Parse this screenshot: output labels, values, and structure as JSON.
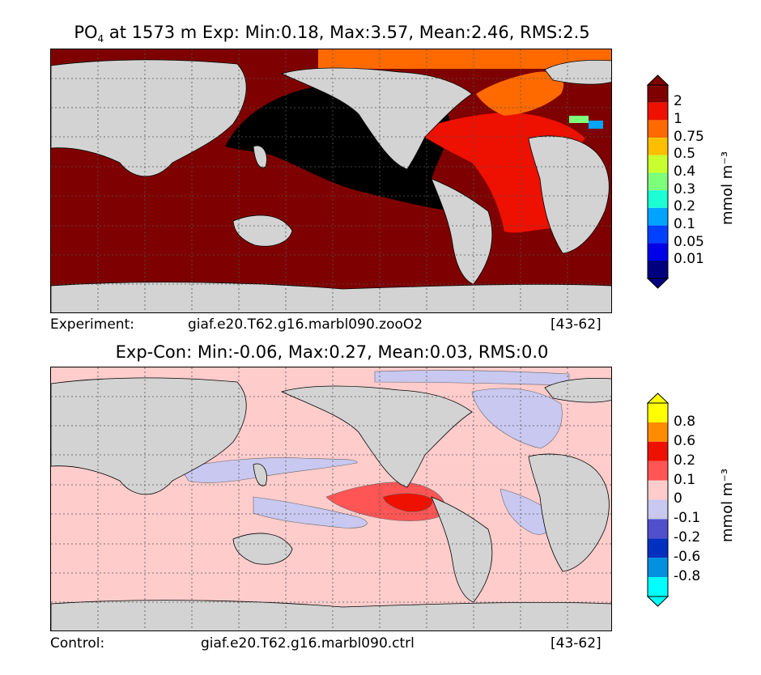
{
  "top": {
    "title_prefix": "PO",
    "title_sub": "4",
    "title_rest": " at 1573 m Exp: Min:0.18, Max:3.57, Mean:2.46, RMS:2.5",
    "caption_left": "Experiment:",
    "caption_center": "giaf.e20.T62.g16.marbl090.zooO2",
    "caption_right": "[43-62]",
    "colorbar": {
      "ticks": [
        "2",
        "1",
        "0.75",
        "0.5",
        "0.4",
        "0.3",
        "0.2",
        "0.1",
        "0.05",
        "0.01"
      ],
      "colors_top_to_bottom": [
        "#7f0000",
        "#ee1000",
        "#ff6a00",
        "#ffbf00",
        "#c9ff2e",
        "#7dff7a",
        "#1cffd4",
        "#00a4ff",
        "#0040ff",
        "#0000e8",
        "#00007f"
      ],
      "unit": "mmol m⁻³"
    },
    "map_colors": {
      "pacific": "#000000",
      "indian_southern": "#7f0000",
      "atlantic": "#ee1000",
      "arctic": "#ff6a00",
      "land": "#d3d3d3"
    }
  },
  "bottom": {
    "title": "Exp-Con: Min:-0.06, Max:0.27, Mean:0.03, RMS:0.0",
    "caption_left": "Control:",
    "caption_center": "giaf.e20.T62.g16.marbl090.ctrl",
    "caption_right": "[43-62]",
    "colorbar": {
      "ticks": [
        "0.8",
        "0.6",
        "0.2",
        "0.1",
        "0",
        "-0.1",
        "-0.2",
        "-0.6",
        "-0.8"
      ],
      "colors_top_to_bottom": [
        "#ffff00",
        "#ff8c00",
        "#ee1000",
        "#ff5555",
        "#ffcccc",
        "#c8c8f0",
        "#5050cc",
        "#0030c0",
        "#0090e0",
        "#00ffff"
      ],
      "unit": "mmol m⁻³"
    },
    "map_colors": {
      "background": "#ffcccc",
      "negative": "#c8c8f0",
      "positive": "#ff5555",
      "strong_positive": "#ee1000",
      "land": "#d3d3d3"
    }
  }
}
